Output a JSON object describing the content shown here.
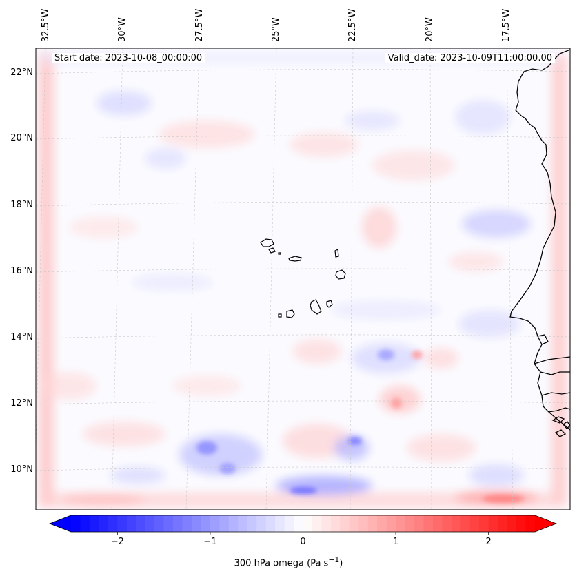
{
  "map": {
    "start_date": "Start date: 2023-10-08_00:00:00",
    "valid_date": "Valid_date: 2023-10-09T11:00:00.00",
    "lon_labels": [
      "32.5°W",
      "30°W",
      "27.5°W",
      "25°W",
      "22.5°W",
      "20°W",
      "17.5°W"
    ],
    "lat_labels": [
      "22°N",
      "20°N",
      "18°N",
      "16°N",
      "14°N",
      "12°N",
      "10°N"
    ],
    "extent": {
      "lon_min": -32.9,
      "lon_max": -15.8,
      "lat_min": 8.9,
      "lat_max": 22.7
    },
    "islands": [
      "Santo Antão",
      "São Vicente",
      "Santa Luzia",
      "São Nicolau",
      "Sal",
      "Boa Vista",
      "Maio",
      "Santiago",
      "Fogo",
      "Brava"
    ],
    "coastline": "West African coast (Mauritania, Senegal, Gambia, Guinea-Bissau)"
  },
  "colorbar": {
    "label_html": "300 hPa omega (Pa s<sup>−1</sup>)",
    "ticks": [
      "−2",
      "−1",
      "0",
      "1",
      "2"
    ],
    "tick_values": [
      -2,
      -1,
      0,
      1,
      2
    ],
    "range": [
      -2.5,
      2.5
    ],
    "colormap": "bwr",
    "extend": "both",
    "colors": {
      "low": "#0000ff",
      "mid": "#ffffff",
      "high": "#ff0000"
    }
  }
}
